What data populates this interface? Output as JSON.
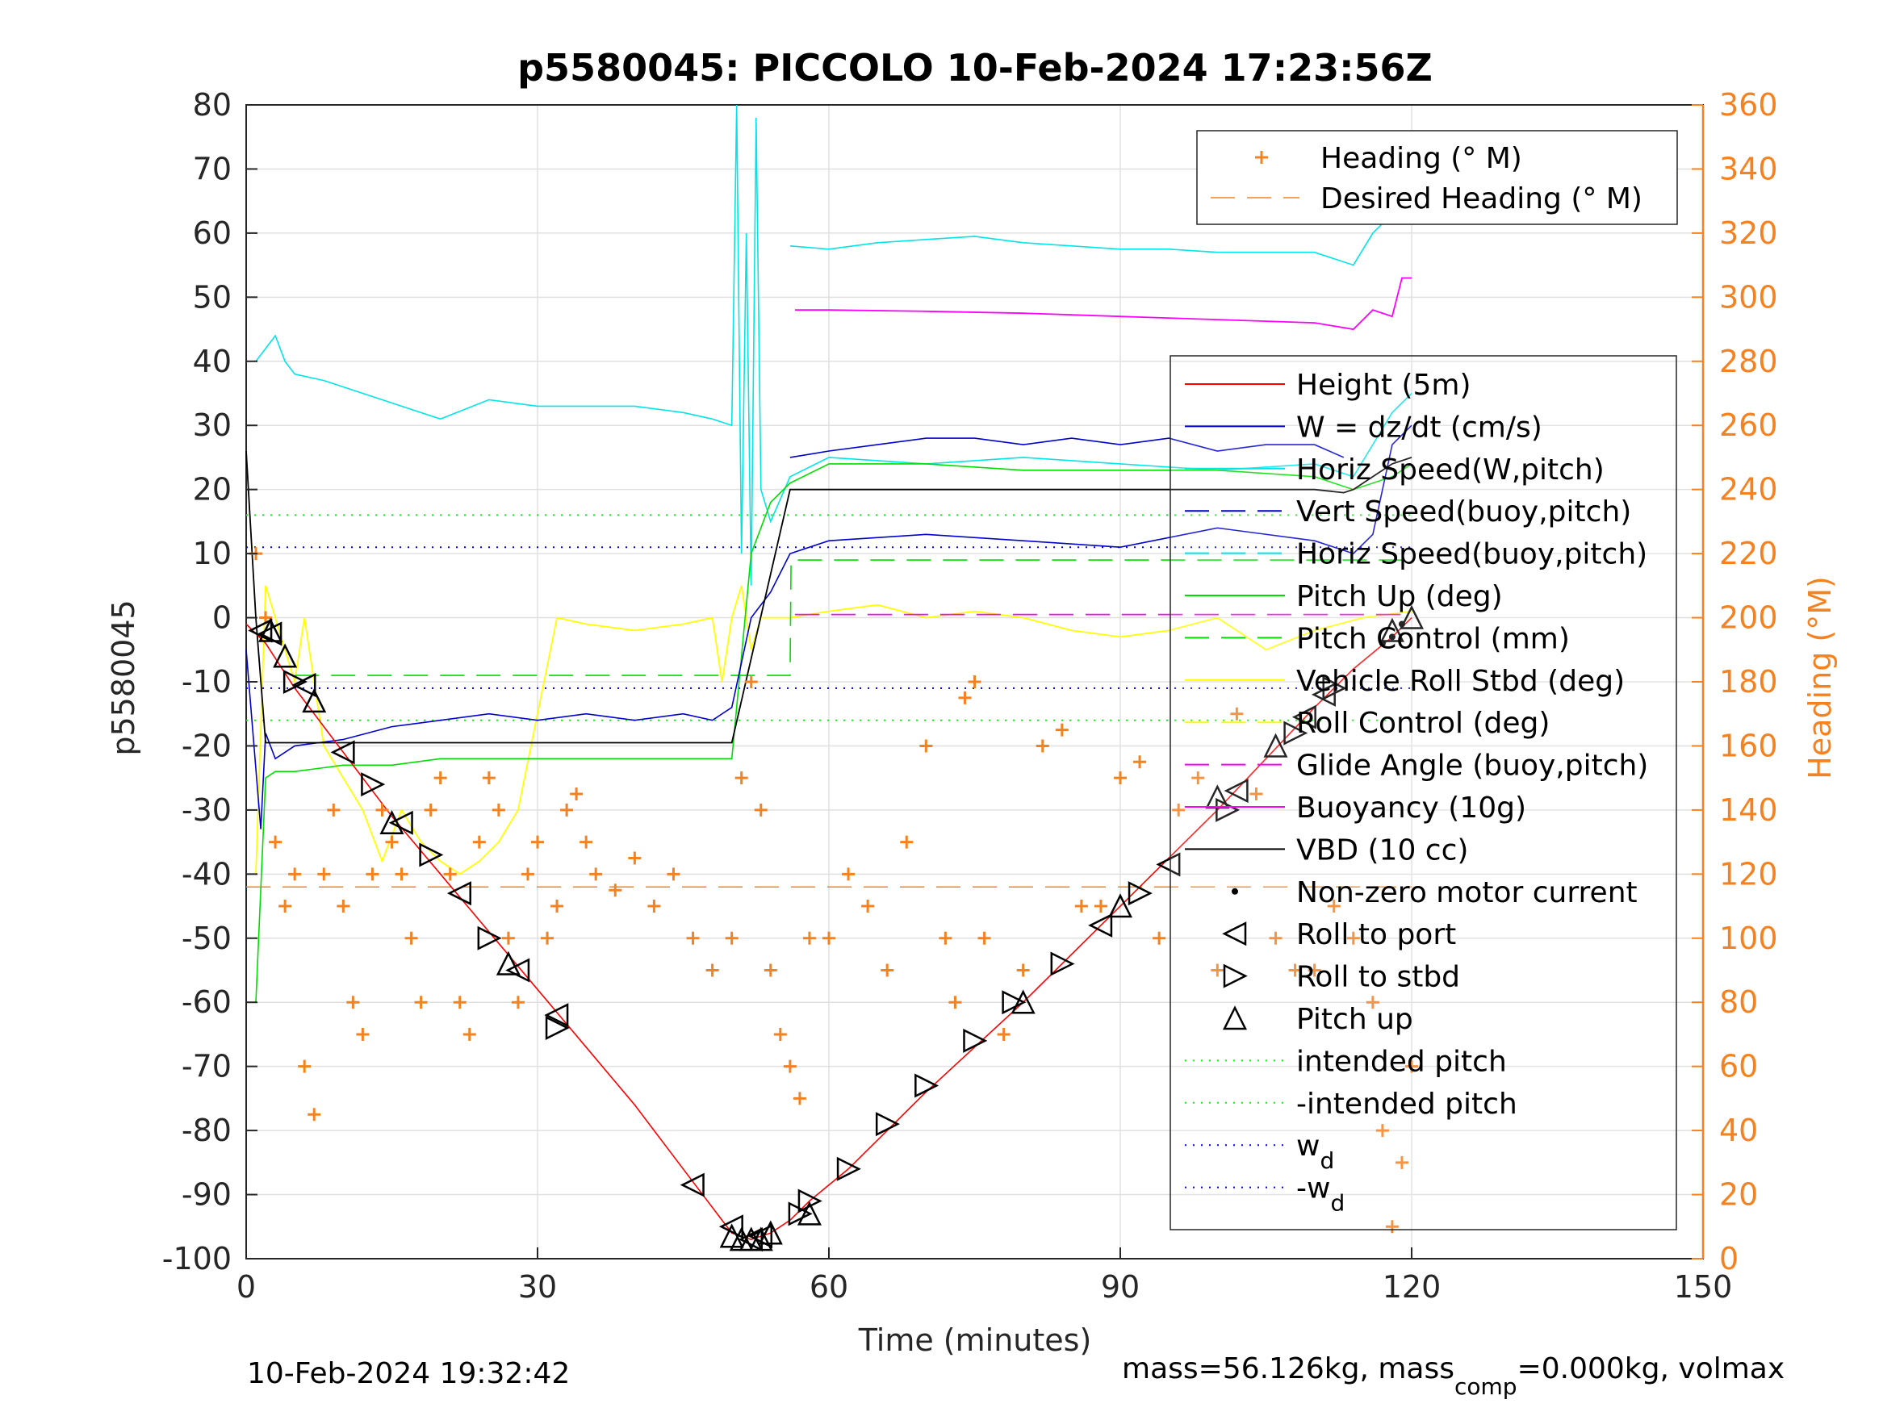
{
  "chart_data": {
    "type": "line",
    "title": "p5580045: PICCOLO 10-Feb-2024 17:23:56Z",
    "xlabel": "Time (minutes)",
    "ylabel": "p5580045",
    "y2label": "Heading (°M)",
    "xlim": [
      0,
      150
    ],
    "ylim": [
      -100,
      80
    ],
    "y2lim": [
      0,
      360
    ],
    "x_ticks": [
      0,
      30,
      60,
      90,
      120,
      150
    ],
    "y_ticks": [
      80,
      70,
      60,
      50,
      40,
      30,
      20,
      10,
      0,
      -10,
      -20,
      -30,
      -40,
      -50,
      -60,
      -70,
      -80,
      -90,
      -100
    ],
    "y2_ticks": [
      360,
      340,
      320,
      300,
      280,
      260,
      240,
      220,
      200,
      180,
      160,
      140,
      120,
      100,
      80,
      60,
      40,
      20,
      0
    ],
    "grid": true,
    "footer_left": "10-Feb-2024 19:32:42",
    "footer_right": "mass=56.126kg, mass",
    "footer_right_sub": "comp",
    "footer_right_tail": "=0.000kg, volmax",
    "colors": {
      "heading": "#f58220",
      "depth": "#ff0000",
      "w": "#0000cc",
      "horiz_speed": "#00e5e5",
      "pitch": "#00dd00",
      "roll": "#ffff00",
      "glide": "#ff00ff",
      "vbd": "#000000",
      "axis": "#262626",
      "grid": "#e0e0e0"
    },
    "legend_top": {
      "position": "top-right",
      "entries": [
        {
          "label": "Heading (° M)",
          "marker": "plus",
          "color": "#f58220"
        },
        {
          "label": "Desired Heading (° M)",
          "marker": "dash",
          "color": "#f58220"
        }
      ]
    },
    "legend_main": {
      "position": "right",
      "entries": [
        {
          "label": "Height (5m)",
          "style": "solid",
          "color": "#ff0000"
        },
        {
          "label": "W = dz/dt (cm/s)",
          "style": "solid",
          "color": "#0000cc"
        },
        {
          "label": "Horiz Speed(W,pitch)",
          "style": "solid",
          "color": "#00e5e5"
        },
        {
          "label": "Vert Speed(buoy,pitch)",
          "style": "dash",
          "color": "#0000cc"
        },
        {
          "label": "Horiz Speed(buoy,pitch)",
          "style": "dash",
          "color": "#00e5e5"
        },
        {
          "label": "Pitch Up (deg)",
          "style": "solid",
          "color": "#00dd00"
        },
        {
          "label": "Pitch Control (mm)",
          "style": "dash",
          "color": "#00dd00"
        },
        {
          "label": "Vehicle Roll Stbd (deg)",
          "style": "solid",
          "color": "#ffff00"
        },
        {
          "label": "Roll Control (deg)",
          "style": "dash",
          "color": "#ffff00"
        },
        {
          "label": "Glide Angle (buoy,pitch)",
          "style": "dash",
          "color": "#ff00ff"
        },
        {
          "label": "Buoyancy (10g)",
          "style": "solid",
          "color": "#ff00ff"
        },
        {
          "label": "VBD (10 cc)",
          "style": "solid",
          "color": "#000000"
        },
        {
          "label": "Non-zero motor current",
          "style": "dot",
          "color": "#000000"
        },
        {
          "label": "Roll to port",
          "style": "tri-left",
          "color": "#000000"
        },
        {
          "label": "Roll to stbd",
          "style": "tri-right",
          "color": "#000000"
        },
        {
          "label": "Pitch up",
          "style": "tri-up",
          "color": "#000000"
        },
        {
          "label": "intended pitch",
          "style": "dotted",
          "color": "#00ff00"
        },
        {
          "label": "-intended pitch",
          "style": "dotted",
          "color": "#00ff00"
        },
        {
          "label": "w",
          "sub": "d",
          "style": "dotted",
          "color": "#0000ff"
        },
        {
          "label": "-w",
          "sub": "d",
          "style": "dotted",
          "color": "#0000ff"
        }
      ]
    },
    "series": [
      {
        "name": "Height (5m)",
        "x": [
          0,
          2,
          5,
          10,
          15,
          20,
          25,
          30,
          35,
          40,
          46,
          50,
          52,
          54,
          56,
          58,
          62,
          70,
          80,
          90,
          100,
          105,
          110,
          114,
          118,
          120
        ],
        "y": [
          -1,
          -4,
          -11,
          -21,
          -31,
          -40,
          -49,
          -58,
          -67,
          -76,
          -88,
          -96,
          -97,
          -96,
          -94,
          -91,
          -86,
          -74,
          -60,
          -45,
          -30,
          -22,
          -14,
          -8,
          -3,
          0
        ]
      },
      {
        "name": "W = dz/dt (cm/s)",
        "x": [
          0,
          1.5,
          2,
          3,
          5,
          10,
          15,
          20,
          25,
          30,
          35,
          40,
          45,
          48,
          50,
          52,
          54,
          56,
          60,
          70,
          80,
          90,
          100,
          110,
          114,
          116,
          118,
          120
        ],
        "y": [
          -5,
          -33,
          -18,
          -22,
          -20,
          -19,
          -17,
          -16,
          -15,
          -16,
          -15,
          -16,
          -15,
          -16,
          -14,
          0,
          4,
          10,
          12,
          13,
          12,
          11,
          14,
          12,
          10,
          13,
          27,
          30
        ]
      },
      {
        "name": "W = dz/dt noise",
        "x": [
          56,
          60,
          65,
          70,
          75,
          80,
          85,
          90,
          95,
          100,
          105,
          110,
          113
        ],
        "y": [
          25,
          26,
          27,
          28,
          28,
          27,
          28,
          27,
          28,
          26,
          27,
          27,
          25
        ]
      },
      {
        "name": "Horiz Speed(W,pitch)",
        "x": [
          1,
          2,
          3,
          4,
          5,
          8,
          12,
          16,
          20,
          25,
          30,
          35,
          40,
          45,
          48,
          50,
          50.5,
          51,
          51.5,
          52,
          52.5,
          53,
          54,
          56,
          60,
          70,
          80,
          90,
          100,
          110,
          114,
          116,
          118,
          120
        ],
        "y": [
          40,
          42,
          44,
          40,
          38,
          37,
          35,
          33,
          31,
          34,
          33,
          33,
          33,
          32,
          31,
          30,
          80,
          10,
          60,
          5,
          78,
          20,
          15,
          22,
          25,
          24,
          25,
          24,
          23,
          24,
          22,
          27,
          32,
          35
        ]
      },
      {
        "name": "Horiz Speed (upper)",
        "x": [
          56,
          60,
          65,
          70,
          75,
          80,
          85,
          90,
          95,
          100,
          105,
          110,
          114,
          116,
          118
        ],
        "y": [
          58,
          57.5,
          58.5,
          59,
          59.5,
          58.5,
          58,
          57.5,
          57.5,
          57,
          57,
          57,
          55,
          60,
          63
        ]
      },
      {
        "name": "Pitch Up (deg)",
        "x": [
          1,
          2,
          3,
          5,
          10,
          15,
          20,
          25,
          30,
          35,
          40,
          45,
          50,
          52,
          54,
          56,
          60,
          70,
          80,
          90,
          100,
          110,
          114,
          118,
          120
        ],
        "y": [
          -60,
          -25,
          -24,
          -24,
          -23,
          -23,
          -22,
          -22,
          -22,
          -22,
          -22,
          -22,
          -22,
          10,
          18,
          21,
          24,
          24,
          23,
          23,
          23,
          22,
          20,
          22,
          24
        ]
      },
      {
        "name": "Pitch Control (mm)",
        "x": [
          5,
          50,
          50.1,
          56,
          56.1,
          120
        ],
        "y": [
          -9,
          -9,
          -9,
          -9,
          9,
          9
        ]
      },
      {
        "name": "Buoyancy (10g)",
        "x": [
          56.5,
          60,
          70,
          80,
          90,
          100,
          110,
          114,
          116,
          118,
          119,
          120
        ],
        "y": [
          48,
          48,
          47.8,
          47.5,
          47,
          46.5,
          46,
          45,
          48,
          47,
          53,
          53
        ]
      },
      {
        "name": "Glide Angle (buoy,pitch)",
        "x": [
          56.5,
          120
        ],
        "y": [
          0.5,
          0.5
        ]
      },
      {
        "name": "VBD (10 cc)",
        "x": [
          0,
          1,
          2,
          50,
          56,
          57,
          70,
          110,
          113,
          114,
          116,
          118,
          120
        ],
        "y": [
          26,
          0,
          -19.5,
          -19.5,
          20,
          20,
          20,
          20,
          19.5,
          20,
          22,
          24,
          25
        ]
      },
      {
        "name": "Vehicle Roll Stbd (deg)",
        "x": [
          1,
          2,
          3,
          4,
          5,
          6,
          8,
          10,
          12,
          14,
          16,
          18,
          20,
          22,
          24,
          26,
          28,
          30,
          32,
          35,
          40,
          45,
          48,
          49,
          50,
          51,
          52,
          53,
          56,
          60,
          65,
          70,
          75,
          80,
          85,
          90,
          95,
          100,
          105,
          110,
          115,
          120
        ],
        "y": [
          -40,
          5,
          0,
          -5,
          -10,
          0,
          -20,
          -25,
          -30,
          -38,
          -30,
          -35,
          -38,
          -40,
          -38,
          -35,
          -30,
          -15,
          0,
          -1,
          -2,
          -1,
          0,
          -10,
          0,
          5,
          -5,
          0,
          0,
          1,
          2,
          0,
          1,
          0,
          -2,
          -3,
          -2,
          0,
          -5,
          -2,
          0,
          1
        ]
      },
      {
        "name": "intended pitch",
        "x": [
          0,
          120
        ],
        "y": [
          16,
          16
        ]
      },
      {
        "name": "-intended pitch",
        "x": [
          0,
          120
        ],
        "y": [
          -16,
          -16
        ]
      },
      {
        "name": "w_d",
        "x": [
          0,
          120
        ],
        "y": [
          11,
          11
        ]
      },
      {
        "name": "-w_d",
        "x": [
          0,
          120
        ],
        "y": [
          -11,
          -11
        ]
      },
      {
        "name": "Desired Heading (° M)",
        "axis": "right",
        "x": [
          0,
          120
        ],
        "y": [
          116,
          116
        ]
      },
      {
        "name": "Heading (° M)",
        "axis": "right",
        "x": [
          1,
          2,
          3,
          4,
          5,
          6,
          7,
          8,
          9,
          10,
          11,
          12,
          13,
          14,
          15,
          16,
          17,
          18,
          19,
          20,
          21,
          22,
          23,
          24,
          25,
          26,
          27,
          28,
          29,
          30,
          31,
          32,
          33,
          34,
          35,
          36,
          38,
          40,
          42,
          44,
          46,
          48,
          50,
          51,
          52,
          53,
          54,
          55,
          56,
          57,
          58,
          60,
          62,
          64,
          66,
          68,
          70,
          72,
          73,
          74,
          75,
          76,
          78,
          80,
          82,
          84,
          86,
          88,
          90,
          92,
          94,
          96,
          98,
          100,
          102,
          104,
          106,
          108,
          110,
          112,
          114,
          116,
          117,
          118,
          119,
          120
        ],
        "y": [
          220,
          200,
          130,
          110,
          120,
          60,
          45,
          120,
          140,
          110,
          80,
          70,
          120,
          140,
          130,
          120,
          100,
          80,
          140,
          150,
          120,
          80,
          70,
          130,
          150,
          140,
          100,
          80,
          120,
          130,
          100,
          110,
          140,
          145,
          130,
          120,
          115,
          125,
          110,
          120,
          100,
          90,
          100,
          150,
          180,
          140,
          90,
          70,
          60,
          50,
          100,
          100,
          120,
          110,
          90,
          130,
          160,
          100,
          80,
          175,
          180,
          100,
          70,
          90,
          160,
          165,
          110,
          110,
          150,
          155,
          100,
          140,
          150,
          90,
          170,
          145,
          100,
          90,
          90,
          110,
          100,
          80,
          40,
          10,
          30,
          60
        ]
      }
    ],
    "markers": {
      "roll_to_port": [
        [
          1.5,
          -2
        ],
        [
          2.5,
          -2.5
        ],
        [
          6,
          -10.5
        ],
        [
          10,
          -21
        ],
        [
          16,
          -32
        ],
        [
          22,
          -43
        ],
        [
          28,
          -55
        ],
        [
          32,
          -62
        ],
        [
          46,
          -88.5
        ],
        [
          50,
          -95
        ],
        [
          52,
          -97
        ],
        [
          53,
          -96.5
        ],
        [
          88,
          -48
        ],
        [
          95,
          -38.5
        ],
        [
          102,
          -27
        ],
        [
          109,
          -15.5
        ],
        [
          111,
          -12
        ]
      ],
      "roll_to_stbd": [
        [
          5,
          -10
        ],
        [
          13,
          -26
        ],
        [
          19,
          -37
        ],
        [
          25,
          -50
        ],
        [
          32,
          -64
        ],
        [
          57,
          -93
        ],
        [
          58,
          -91
        ],
        [
          62,
          -86
        ],
        [
          66,
          -79
        ],
        [
          70,
          -73
        ],
        [
          75,
          -66
        ],
        [
          79,
          -60
        ],
        [
          84,
          -54
        ],
        [
          92,
          -43
        ],
        [
          101,
          -30
        ],
        [
          108,
          -18
        ],
        [
          112,
          -11
        ]
      ],
      "pitch_up": [
        [
          2.5,
          -2
        ],
        [
          4,
          -6
        ],
        [
          7,
          -13
        ],
        [
          15,
          -32
        ],
        [
          27,
          -54
        ],
        [
          50,
          -96.5
        ],
        [
          51,
          -97
        ],
        [
          52,
          -97
        ],
        [
          53,
          -97
        ],
        [
          54,
          -96
        ],
        [
          58,
          -93
        ],
        [
          80,
          -60
        ],
        [
          90,
          -45
        ],
        [
          100,
          -28
        ],
        [
          106,
          -20
        ],
        [
          118,
          -2
        ],
        [
          120,
          0
        ]
      ],
      "motor_current": [
        [
          117,
          -4
        ],
        [
          118,
          -3
        ],
        [
          119,
          -1
        ]
      ]
    }
  }
}
